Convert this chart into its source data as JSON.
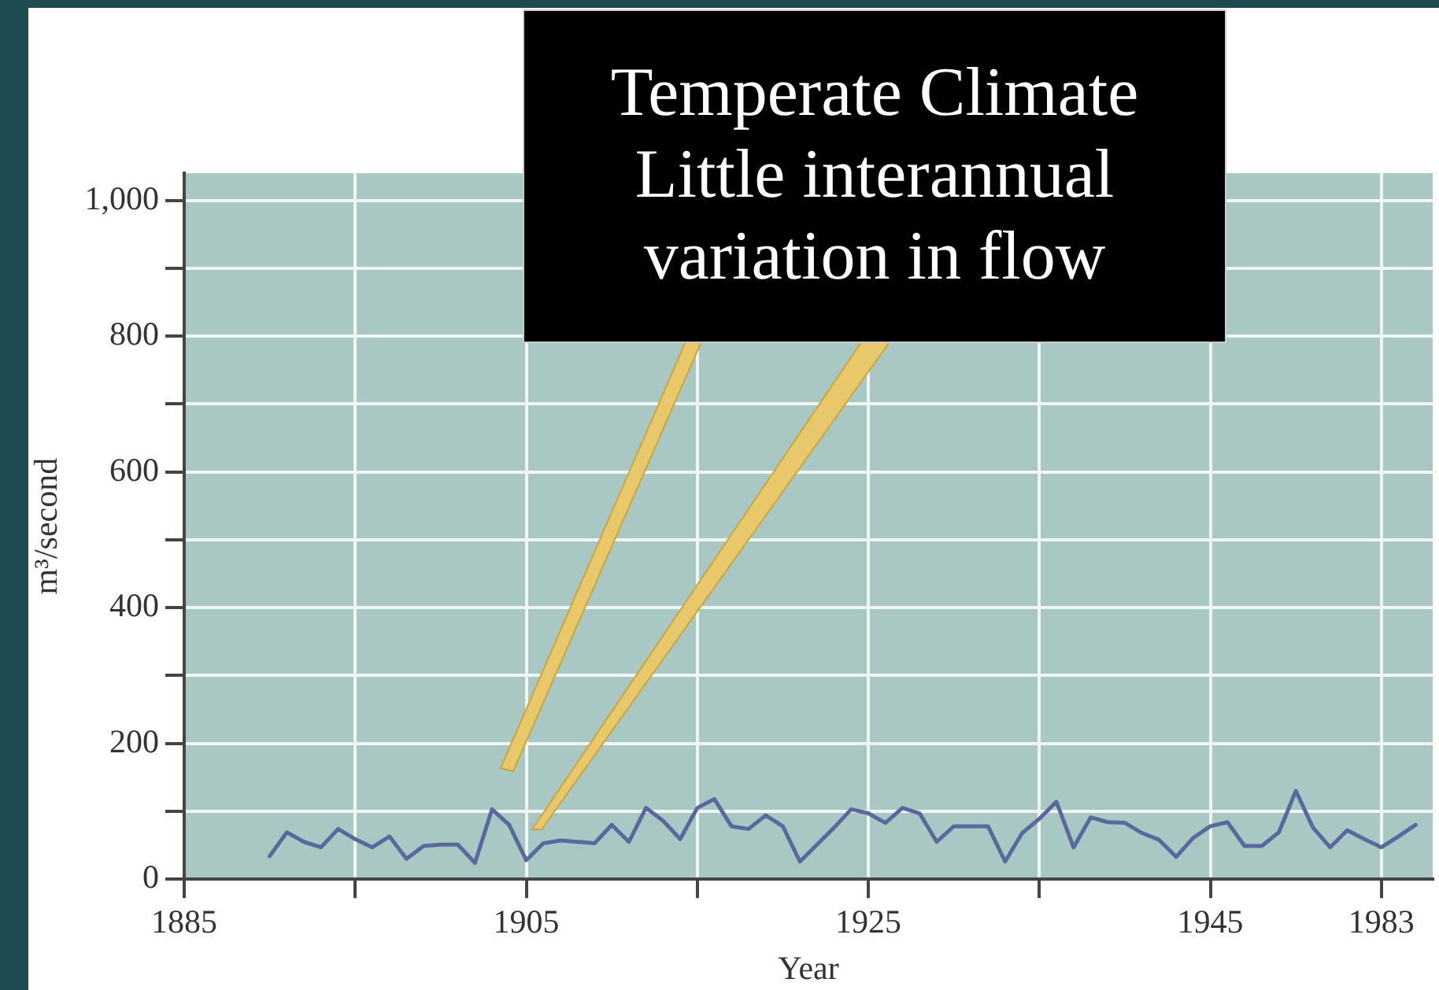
{
  "chart_data": {
    "type": "line",
    "title": "Temperate Climate",
    "subtitle": "Little interannual variation in flow",
    "xlabel": "Year",
    "ylabel": "m³/second",
    "categories": [
      "1885",
      null,
      null,
      null,
      null,
      null,
      null,
      null,
      null,
      null,
      null,
      null,
      null,
      null,
      null,
      null,
      null,
      null,
      null,
      null,
      "1905",
      null,
      null,
      null,
      null,
      null,
      null,
      null,
      null,
      null,
      null,
      null,
      null,
      null,
      null,
      null,
      null,
      null,
      null,
      null,
      "1925",
      null,
      null,
      null,
      null,
      null,
      null,
      null,
      null,
      null,
      null,
      null,
      null,
      null,
      null,
      null,
      null,
      null,
      null,
      null,
      "1945",
      null,
      null,
      null,
      null,
      null,
      null,
      null,
      null,
      null,
      "1983",
      null,
      null,
      null
    ],
    "series": [
      {
        "color": "#5a689e",
        "values": [
          null,
          null,
          null,
          null,
          null,
          34,
          69,
          55,
          47,
          74,
          59,
          47,
          63,
          30,
          49,
          51,
          51,
          24,
          103,
          80,
          28,
          53,
          57,
          55,
          53,
          80,
          55,
          105,
          86,
          59,
          105,
          118,
          78,
          74,
          94,
          78,
          26,
          51,
          76,
          103,
          97,
          83,
          105,
          97,
          55,
          78,
          78,
          78,
          26,
          68,
          89,
          114,
          47,
          91,
          84,
          83,
          68,
          58,
          33,
          61,
          78,
          84,
          49,
          49,
          69,
          130,
          76,
          47,
          72,
          59,
          47,
          63,
          80,
          null
        ]
      }
    ],
    "ylim": [
      0,
      1040
    ],
    "yticks": [
      0,
      {
        "value": 100,
        "label": null
      },
      200,
      {
        "value": 300,
        "label": null
      },
      400,
      {
        "value": 500,
        "label": null
      },
      600,
      {
        "value": 700,
        "label": null
      },
      800,
      {
        "value": 900,
        "label": null
      },
      {
        "value": 1000,
        "label": "1,000"
      }
    ],
    "grid": true,
    "marker": "none",
    "line_style": "solid",
    "legend": false
  }
}
